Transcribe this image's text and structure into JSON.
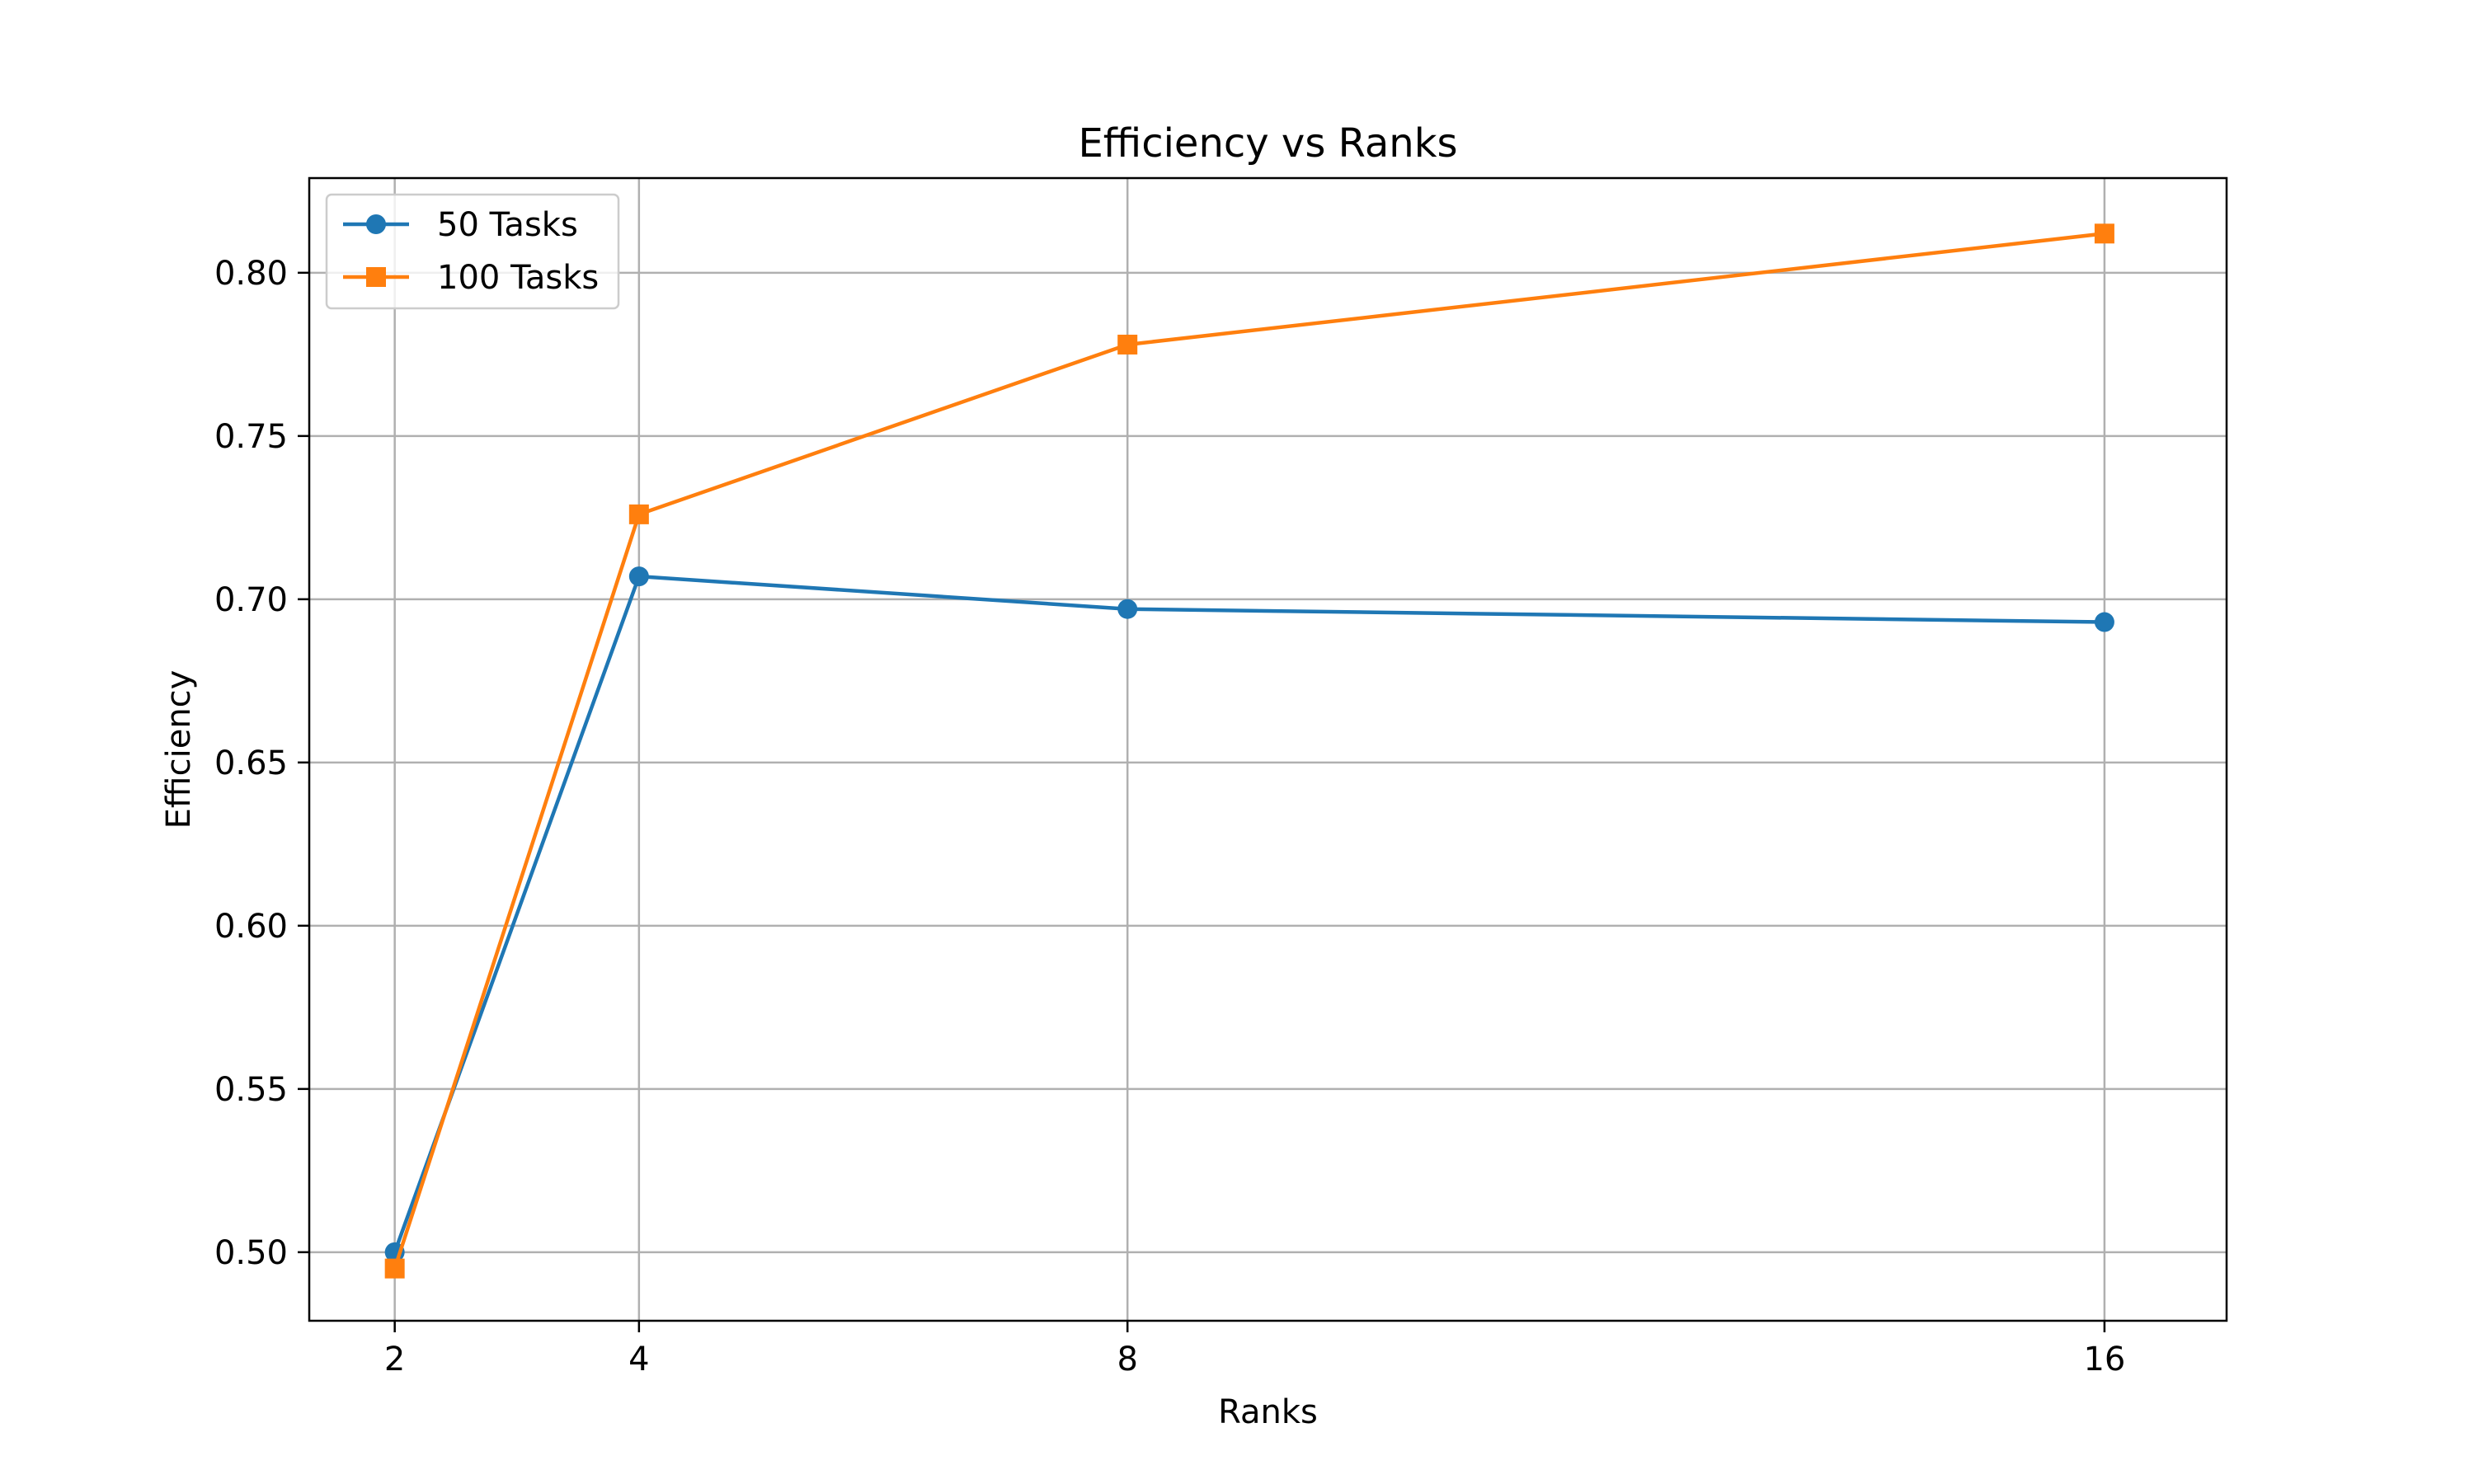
{
  "chart_data": {
    "type": "line",
    "title": "Efficiency vs Ranks",
    "xlabel": "Ranks",
    "ylabel": "Efficiency",
    "x": [
      2,
      4,
      8,
      16
    ],
    "x_tick_labels": [
      "2",
      "4",
      "8",
      "16"
    ],
    "xlim": [
      1.3,
      17.0
    ],
    "ylim": [
      0.479,
      0.829
    ],
    "y_ticks": [
      0.5,
      0.55,
      0.6,
      0.65,
      0.7,
      0.75,
      0.8
    ],
    "y_tick_labels": [
      "0.50",
      "0.55",
      "0.60",
      "0.65",
      "0.70",
      "0.75",
      "0.80"
    ],
    "grid": true,
    "legend_position": "upper-left",
    "series": [
      {
        "name": "50 Tasks",
        "values": [
          0.5,
          0.707,
          0.697,
          0.693
        ],
        "color": "#1f77b4",
        "marker": "circle"
      },
      {
        "name": "100 Tasks",
        "values": [
          0.495,
          0.726,
          0.778,
          0.812
        ],
        "color": "#ff7f0e",
        "marker": "square"
      }
    ]
  }
}
